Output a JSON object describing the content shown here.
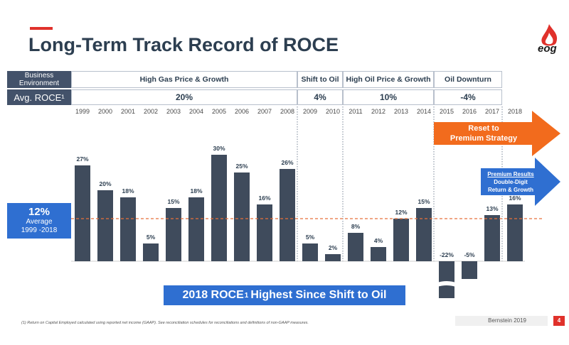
{
  "slide": {
    "title": "Long-Term Track Record of ROCE",
    "logo_text": "eog",
    "row_labels": {
      "environment": "Business Environment",
      "roce": "Avg. ROCE¹"
    },
    "eras": [
      {
        "name": "High Gas Price & Growth",
        "avg": "20%"
      },
      {
        "name": "Shift to Oil",
        "avg": "4%"
      },
      {
        "name": "High Oil Price & Growth",
        "avg": "10%"
      },
      {
        "name": "Oil Downturn",
        "avg": "-4%"
      }
    ],
    "average_box": {
      "value": "12%",
      "line1": "Average",
      "line2": "1999 -2018"
    },
    "reset_arrow": {
      "line1": "Reset to",
      "line2": "Premium Strategy"
    },
    "premium_arrow": {
      "line1": "Premium Results",
      "line2": "Double-Digit",
      "line3": "Return & Growth"
    },
    "banner": {
      "before": "2018 ROCE",
      "sup": "1",
      "after": "Highest Since Shift to Oil"
    },
    "footnote": "(1)    Return on Capital Employed calculated using reported net income (GAAP). See reconciliation schedules for reconciliations and definitions of non-GAAP measures.",
    "source": "Bernstein 2019",
    "page_number": "4",
    "colors": {
      "bar": "#3f4b5c",
      "accent_blue": "#2f6fd1",
      "orange": "#f26b1d",
      "red": "#e0312b",
      "avg_line": "#e8703a"
    }
  },
  "chart_data": {
    "type": "bar",
    "categories": [
      "1999",
      "2000",
      "2001",
      "2002",
      "2003",
      "2004",
      "2005",
      "2006",
      "2007",
      "2008",
      "2009",
      "2010",
      "2011",
      "2012",
      "2013",
      "2014",
      "2015",
      "2016",
      "2017",
      "2018"
    ],
    "values": [
      27,
      20,
      18,
      5,
      15,
      18,
      30,
      25,
      16,
      26,
      5,
      2,
      8,
      4,
      12,
      15,
      -22,
      -5,
      13,
      16
    ],
    "data_labels": [
      "27%",
      "20%",
      "18%",
      "5%",
      "15%",
      "18%",
      "30%",
      "25%",
      "16%",
      "26%",
      "5%",
      "2%",
      "8%",
      "4%",
      "12%",
      "15%",
      "-22%",
      "-5%",
      "13%",
      "16%"
    ],
    "reference_line": {
      "value": 12
    },
    "axis_break_on": "2015",
    "grid": false
  }
}
